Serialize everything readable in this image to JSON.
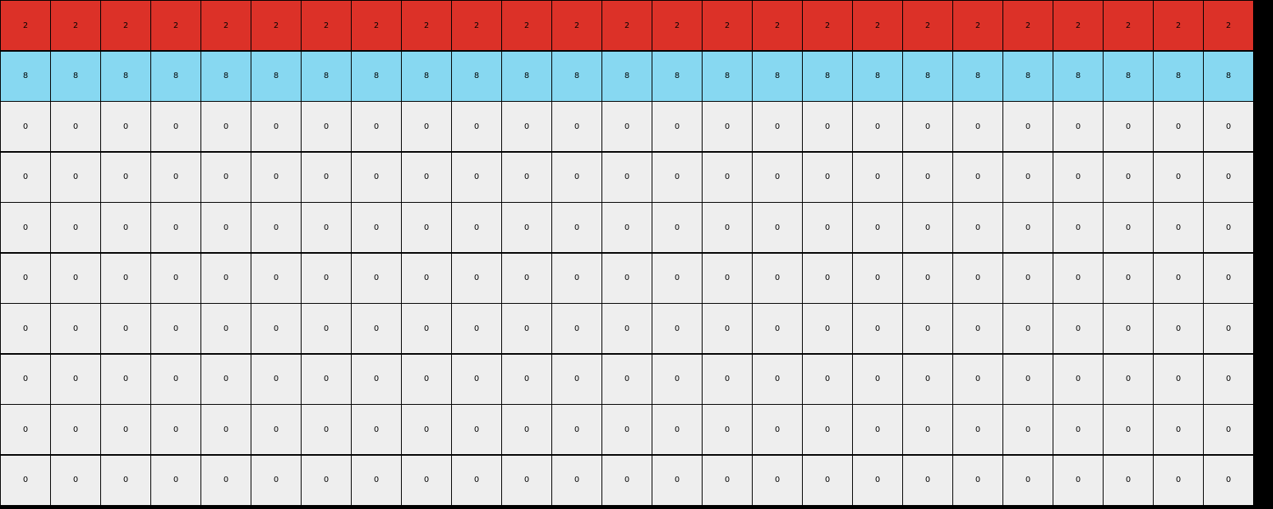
{
  "palette": {
    "0": "#eeeeee",
    "2": "#dc3128",
    "8": "#87d8f1"
  },
  "grid": {
    "rows": [
      [
        "2",
        "2",
        "2",
        "2",
        "2",
        "2",
        "2",
        "2",
        "2",
        "2",
        "2",
        "2",
        "2",
        "2",
        "2",
        "2",
        "2",
        "2",
        "2",
        "2",
        "2",
        "2",
        "2",
        "2",
        "2"
      ],
      [
        "8",
        "8",
        "8",
        "8",
        "8",
        "8",
        "8",
        "8",
        "8",
        "8",
        "8",
        "8",
        "8",
        "8",
        "8",
        "8",
        "8",
        "8",
        "8",
        "8",
        "8",
        "8",
        "8",
        "8",
        "8"
      ],
      [
        "0",
        "0",
        "0",
        "0",
        "0",
        "0",
        "0",
        "0",
        "0",
        "0",
        "0",
        "0",
        "0",
        "0",
        "0",
        "0",
        "0",
        "0",
        "0",
        "0",
        "0",
        "0",
        "0",
        "0",
        "0"
      ],
      [
        "0",
        "0",
        "0",
        "0",
        "0",
        "0",
        "0",
        "0",
        "0",
        "0",
        "0",
        "0",
        "0",
        "0",
        "0",
        "0",
        "0",
        "0",
        "0",
        "0",
        "0",
        "0",
        "0",
        "0",
        "0"
      ],
      [
        "0",
        "0",
        "0",
        "0",
        "0",
        "0",
        "0",
        "0",
        "0",
        "0",
        "0",
        "0",
        "0",
        "0",
        "0",
        "0",
        "0",
        "0",
        "0",
        "0",
        "0",
        "0",
        "0",
        "0",
        "0"
      ],
      [
        "0",
        "0",
        "0",
        "0",
        "0",
        "0",
        "0",
        "0",
        "0",
        "0",
        "0",
        "0",
        "0",
        "0",
        "0",
        "0",
        "0",
        "0",
        "0",
        "0",
        "0",
        "0",
        "0",
        "0",
        "0"
      ],
      [
        "0",
        "0",
        "0",
        "0",
        "0",
        "0",
        "0",
        "0",
        "0",
        "0",
        "0",
        "0",
        "0",
        "0",
        "0",
        "0",
        "0",
        "0",
        "0",
        "0",
        "0",
        "0",
        "0",
        "0",
        "0"
      ],
      [
        "0",
        "0",
        "0",
        "0",
        "0",
        "0",
        "0",
        "0",
        "0",
        "0",
        "0",
        "0",
        "0",
        "0",
        "0",
        "0",
        "0",
        "0",
        "0",
        "0",
        "0",
        "0",
        "0",
        "0",
        "0"
      ],
      [
        "0",
        "0",
        "0",
        "0",
        "0",
        "0",
        "0",
        "0",
        "0",
        "0",
        "0",
        "0",
        "0",
        "0",
        "0",
        "0",
        "0",
        "0",
        "0",
        "0",
        "0",
        "0",
        "0",
        "0",
        "0"
      ],
      [
        "0",
        "0",
        "0",
        "0",
        "0",
        "0",
        "0",
        "0",
        "0",
        "0",
        "0",
        "0",
        "0",
        "0",
        "0",
        "0",
        "0",
        "0",
        "0",
        "0",
        "0",
        "0",
        "0",
        "0",
        "0"
      ]
    ]
  }
}
